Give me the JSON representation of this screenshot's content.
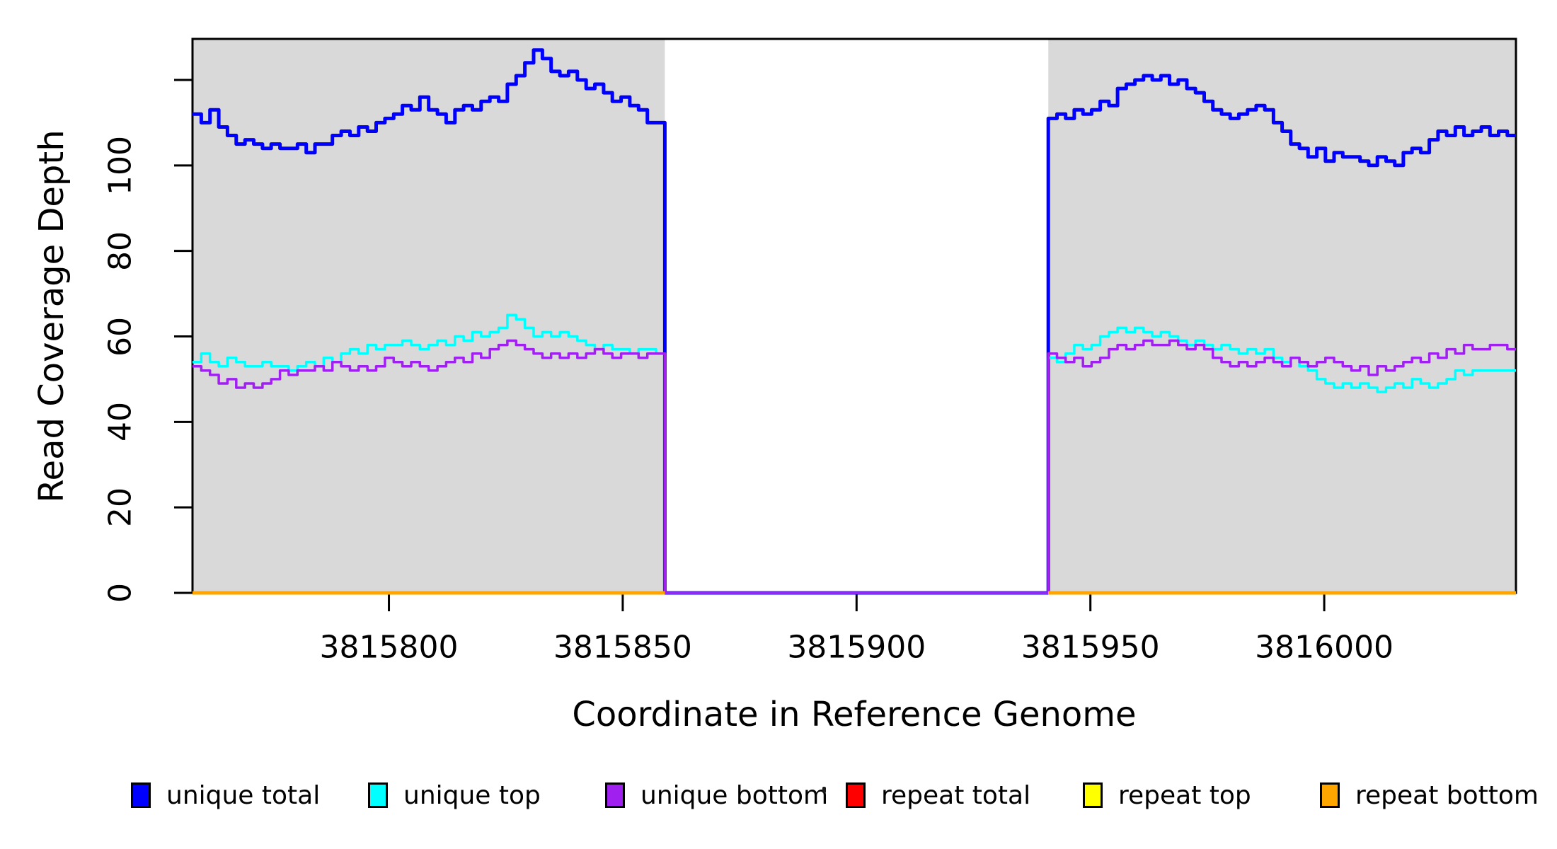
{
  "figure": {
    "background_color": "#FFFFFF",
    "shaded_band_color": "#D9D9D9",
    "frame_color": "#000000"
  },
  "chart_data": {
    "type": "line",
    "subtype": "step-coverage",
    "title": "",
    "xlabel": "Coordinate in Reference Genome",
    "ylabel": "Read Coverage Depth",
    "x_range": [
      3815758,
      3816041
    ],
    "y_range": [
      0,
      129.6
    ],
    "x_ticks": [
      {
        "value": 3815800,
        "label": "3815800"
      },
      {
        "value": 3815850,
        "label": "3815850"
      },
      {
        "value": 3815900,
        "label": "3815900"
      },
      {
        "value": 3815950,
        "label": "3815950"
      },
      {
        "value": 3816000,
        "label": "3816000"
      }
    ],
    "y_ticks": [
      {
        "value": 0,
        "label": "0"
      },
      {
        "value": 20,
        "label": "20"
      },
      {
        "value": 40,
        "label": "40"
      },
      {
        "value": 60,
        "label": "60"
      },
      {
        "value": 80,
        "label": "80"
      },
      {
        "value": 100,
        "label": "100"
      },
      {
        "value": 120,
        "label": ""
      }
    ],
    "grid": false,
    "legend_position": "bottom",
    "shaded_regions": [
      {
        "x0": 3815758,
        "x1": 3815859
      },
      {
        "x0": 3815941,
        "x1": 3816041
      }
    ],
    "uncovered_gap": {
      "x0": 3815859,
      "x1": 3815941,
      "depth": 0
    },
    "series": [
      {
        "name": "unique total",
        "color": "#0000FF",
        "width": 5,
        "connect_segments": true,
        "segments": [
          {
            "x0": 3815758,
            "x1": 3815859,
            "values": [
              112,
              110,
              113,
              109,
              107,
              105,
              106,
              105,
              104,
              105,
              104,
              104,
              105,
              103,
              105,
              105,
              107,
              108,
              107,
              109,
              108,
              110,
              111,
              112,
              114,
              113,
              116,
              113,
              112,
              110,
              113,
              114,
              113,
              115,
              116,
              115,
              119,
              121,
              124,
              127,
              125,
              122,
              121,
              122,
              120,
              118,
              119,
              117,
              115,
              116,
              114,
              113,
              110,
              110
            ]
          },
          {
            "x0": 3815859,
            "x1": 3815941,
            "values": [
              0
            ]
          },
          {
            "x0": 3815941,
            "x1": 3816041,
            "values": [
              111,
              112,
              111,
              113,
              112,
              113,
              115,
              114,
              118,
              119,
              120,
              121,
              120,
              121,
              119,
              120,
              118,
              117,
              115,
              113,
              112,
              111,
              112,
              113,
              114,
              113,
              110,
              108,
              105,
              104,
              102,
              104,
              101,
              103,
              102,
              102,
              101,
              100,
              102,
              101,
              100,
              103,
              104,
              103,
              106,
              108,
              107,
              109,
              107,
              108,
              109,
              107,
              108,
              107
            ]
          }
        ]
      },
      {
        "name": "unique top",
        "color": "#00FFFF",
        "width": 3.5,
        "connect_segments": true,
        "segments": [
          {
            "x0": 3815758,
            "x1": 3815859,
            "values": [
              54,
              56,
              54,
              53,
              55,
              54,
              53,
              53,
              54,
              53,
              53,
              52,
              53,
              54,
              53,
              55,
              54,
              56,
              57,
              56,
              58,
              57,
              58,
              58,
              59,
              58,
              57,
              58,
              59,
              58,
              60,
              59,
              61,
              60,
              61,
              62,
              65,
              64,
              62,
              60,
              61,
              60,
              61,
              60,
              59,
              58,
              57,
              58,
              57,
              57,
              56,
              57,
              57,
              56
            ]
          },
          {
            "x0": 3815859,
            "x1": 3815941,
            "values": [
              0
            ]
          },
          {
            "x0": 3815941,
            "x1": 3816041,
            "values": [
              55,
              54,
              56,
              58,
              57,
              58,
              60,
              61,
              62,
              61,
              62,
              61,
              60,
              61,
              60,
              59,
              58,
              59,
              58,
              57,
              58,
              57,
              56,
              57,
              56,
              57,
              55,
              54,
              55,
              53,
              52,
              50,
              49,
              48,
              49,
              48,
              49,
              48,
              47,
              48,
              49,
              48,
              50,
              49,
              48,
              49,
              50,
              52,
              51,
              52,
              52,
              52,
              52,
              52
            ]
          }
        ]
      },
      {
        "name": "unique bottom",
        "color": "#A020F0",
        "width": 3.5,
        "connect_segments": true,
        "segments": [
          {
            "x0": 3815758,
            "x1": 3815859,
            "values": [
              53,
              52,
              51,
              49,
              50,
              48,
              49,
              48,
              49,
              50,
              52,
              51,
              52,
              52,
              53,
              52,
              54,
              53,
              52,
              53,
              52,
              53,
              55,
              54,
              53,
              54,
              53,
              52,
              53,
              54,
              55,
              54,
              56,
              55,
              57,
              58,
              59,
              58,
              57,
              56,
              55,
              56,
              55,
              56,
              55,
              56,
              57,
              56,
              55,
              56,
              56,
              55,
              56,
              56
            ]
          },
          {
            "x0": 3815859,
            "x1": 3815941,
            "values": [
              0
            ]
          },
          {
            "x0": 3815941,
            "x1": 3816041,
            "values": [
              56,
              55,
              54,
              55,
              53,
              54,
              55,
              57,
              58,
              57,
              58,
              59,
              58,
              58,
              59,
              58,
              57,
              58,
              57,
              55,
              54,
              53,
              54,
              53,
              54,
              55,
              54,
              53,
              55,
              54,
              53,
              54,
              55,
              54,
              53,
              52,
              53,
              51,
              53,
              52,
              53,
              54,
              55,
              54,
              56,
              55,
              57,
              56,
              58,
              57,
              57,
              58,
              58,
              57
            ]
          }
        ]
      },
      {
        "name": "repeat total",
        "color": "#FF0000",
        "width": 3.5,
        "connect_segments": false,
        "segments": [
          {
            "x0": 3815758,
            "x1": 3815859,
            "values": [
              0
            ]
          },
          {
            "x0": 3815941,
            "x1": 3816041,
            "values": [
              0
            ]
          }
        ]
      },
      {
        "name": "repeat top",
        "color": "#FFFF00",
        "width": 3.5,
        "connect_segments": false,
        "segments": [
          {
            "x0": 3815758,
            "x1": 3815859,
            "values": [
              0
            ]
          },
          {
            "x0": 3815941,
            "x1": 3816041,
            "values": [
              0
            ]
          }
        ]
      },
      {
        "name": "repeat bottom",
        "color": "#FFA500",
        "width": 5,
        "connect_segments": false,
        "segments": [
          {
            "x0": 3815758,
            "x1": 3815859,
            "values": [
              0
            ]
          },
          {
            "x0": 3815941,
            "x1": 3816041,
            "values": [
              0
            ]
          }
        ]
      }
    ]
  },
  "legend": {
    "items": [
      {
        "label": "unique total",
        "color": "#0000FF"
      },
      {
        "label": "unique top",
        "color": "#00FFFF"
      },
      {
        "label": "unique bottom",
        "color": "#A020F0"
      },
      {
        "label": "repeat total",
        "color": "#FF0000"
      },
      {
        "label": "repeat top",
        "color": "#FFFF00"
      },
      {
        "label": "repeat bottom",
        "color": "#FFA500"
      }
    ]
  }
}
